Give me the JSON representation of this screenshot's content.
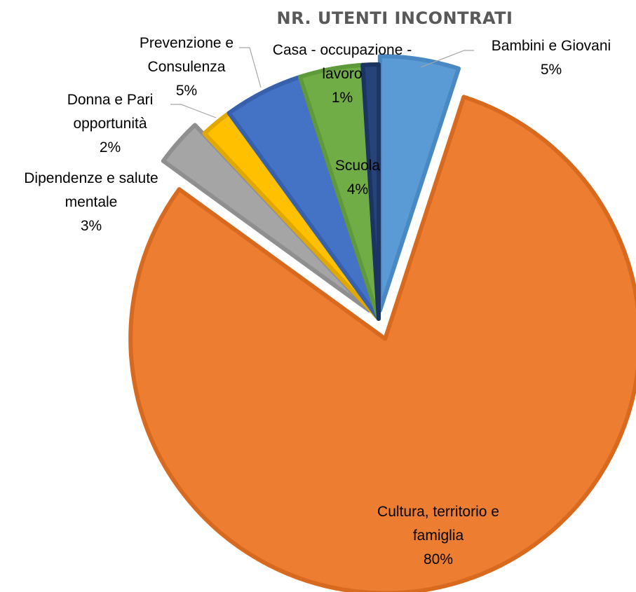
{
  "chart_data": {
    "type": "pie",
    "title": "NR. UTENTI INCONTRATI",
    "series": [
      {
        "values": [
          5,
          80,
          3,
          2,
          5,
          4,
          1
        ],
        "categories": [
          "Bambini e Giovani",
          "Cultura, territorio e famiglia",
          "Dipendenze e salute mentale",
          "Donna e Pari opportunità",
          "Prevenzione e Consulenza",
          "Scuola",
          "Casa - occupazione - lavoro"
        ],
        "data_labels": [
          "5%",
          "80%",
          "3%",
          "2%",
          "5%",
          "4%",
          "1%"
        ],
        "colors": [
          "#5b9bd5",
          "#ed7d31",
          "#a5a5a5",
          "#ffc000",
          "#4472c4",
          "#70ad47",
          "#264478"
        ]
      }
    ],
    "exploded": true,
    "legend": "none"
  },
  "labels": [
    {
      "lines": [
        "Bambini e Giovani",
        "5%"
      ]
    },
    {
      "lines": [
        "Cultura, territorio e",
        "famiglia",
        "80%"
      ]
    },
    {
      "lines": [
        "Dipendenze e salute",
        "mentale",
        "3%"
      ]
    },
    {
      "lines": [
        "Donna e Pari",
        "opportunità",
        "2%"
      ]
    },
    {
      "lines": [
        "Prevenzione e",
        "Consulenza",
        "5%"
      ]
    },
    {
      "lines": [
        "Scuola",
        "4%"
      ]
    },
    {
      "lines": [
        "Casa - occupazione -",
        "lavoro",
        "1%"
      ]
    }
  ]
}
